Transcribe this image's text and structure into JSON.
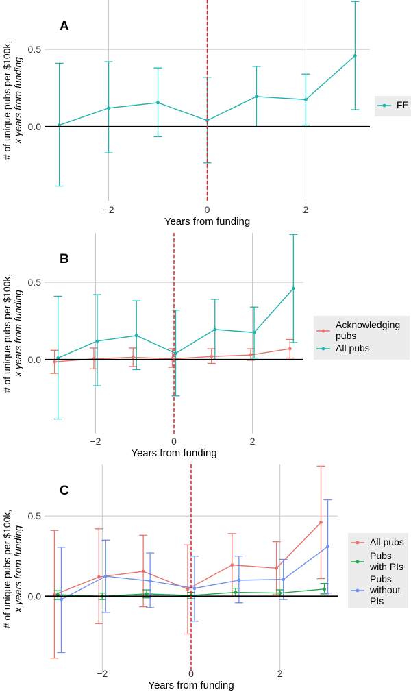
{
  "colors": {
    "teal": "#20b2aa",
    "salmon": "#e8736a",
    "green": "#22a64a",
    "blue": "#6f8ff0",
    "grid": "#c8c8c8",
    "zero_line": "#000000",
    "funding_line": "#e0202a",
    "legend_bg": "#ececec"
  },
  "chart_data": [
    {
      "type": "line",
      "panel_label": "A",
      "title": "",
      "xlabel": "Years from funding",
      "ylabel": "# of unique pubs per $100k,",
      "ylabel_italic": "x years from funding",
      "xlim": [
        -3.3,
        3.3
      ],
      "ylim": [
        -0.48,
        0.82
      ],
      "xticks": [
        -2,
        0,
        2
      ],
      "xtick_labels": [
        "−2",
        "0",
        "2"
      ],
      "yticks": [
        0.0,
        0.5
      ],
      "ytick_labels": [
        "0.0",
        "0.5"
      ],
      "vline_x": 0,
      "legend_position": "right",
      "series": [
        {
          "name": "FE",
          "color": "#20b2aa",
          "x": [
            -3,
            -2,
            -1,
            0,
            1,
            2,
            3
          ],
          "y": [
            0.01,
            0.12,
            0.155,
            0.04,
            0.195,
            0.175,
            0.46
          ],
          "lower": [
            -0.385,
            -0.17,
            -0.065,
            -0.235,
            0.0,
            0.01,
            0.11
          ],
          "upper": [
            0.41,
            0.42,
            0.38,
            0.32,
            0.39,
            0.34,
            0.81
          ]
        }
      ]
    },
    {
      "type": "line",
      "panel_label": "B",
      "title": "",
      "xlabel": "Years from funding",
      "ylabel": "# of unique pubs per $100k,",
      "ylabel_italic": "x years from funding",
      "xlim": [
        -3.3,
        3.3
      ],
      "ylim": [
        -0.48,
        0.82
      ],
      "xticks": [
        -2,
        0,
        2
      ],
      "xtick_labels": [
        "−2",
        "0",
        "2"
      ],
      "yticks": [
        0.0,
        0.5
      ],
      "ytick_labels": [
        "0.0",
        "0.5"
      ],
      "vline_x": 0,
      "legend_position": "right",
      "series": [
        {
          "name": "Acknowledging pubs",
          "legend_lines": [
            "Acknowledging",
            "pubs"
          ],
          "color": "#e8736a",
          "x": [
            -3,
            -2,
            -1,
            0,
            1,
            2,
            3
          ],
          "y": [
            -0.015,
            0.005,
            0.015,
            0.005,
            0.02,
            0.03,
            0.07
          ],
          "lower": [
            -0.09,
            -0.06,
            -0.045,
            -0.05,
            -0.025,
            -0.005,
            0.01
          ],
          "upper": [
            0.06,
            0.075,
            0.075,
            0.07,
            0.07,
            0.07,
            0.13
          ]
        },
        {
          "name": "All pubs",
          "legend_lines": [
            "All pubs"
          ],
          "color": "#20b2aa",
          "x": [
            -3,
            -2,
            -1,
            0,
            1,
            2,
            3
          ],
          "y": [
            0.01,
            0.12,
            0.155,
            0.04,
            0.195,
            0.175,
            0.46
          ],
          "lower": [
            -0.385,
            -0.17,
            -0.065,
            -0.235,
            0.0,
            0.01,
            0.11
          ],
          "upper": [
            0.41,
            0.42,
            0.38,
            0.32,
            0.39,
            0.34,
            0.81
          ]
        }
      ]
    },
    {
      "type": "line",
      "panel_label": "C",
      "title": "",
      "xlabel": "Years from funding",
      "ylabel": "# of unique pubs per $100k,",
      "ylabel_italic": "x years from funding",
      "xlim": [
        -3.3,
        3.3
      ],
      "ylim": [
        -0.48,
        0.82
      ],
      "xticks": [
        -2,
        0,
        2
      ],
      "xtick_labels": [
        "−2",
        "0",
        "2"
      ],
      "yticks": [
        0.0,
        0.5
      ],
      "ytick_labels": [
        "0.0",
        "0.5"
      ],
      "vline_x": 0,
      "legend_position": "right",
      "series": [
        {
          "name": "All pubs",
          "legend_lines": [
            "All pubs"
          ],
          "color": "#e8736a",
          "x": [
            -3,
            -2,
            -1,
            0,
            1,
            2,
            3
          ],
          "y": [
            0.01,
            0.12,
            0.155,
            0.045,
            0.195,
            0.175,
            0.46
          ],
          "lower": [
            -0.385,
            -0.17,
            -0.065,
            -0.235,
            0.0,
            0.01,
            0.11
          ],
          "upper": [
            0.41,
            0.42,
            0.38,
            0.32,
            0.39,
            0.34,
            0.81
          ]
        },
        {
          "name": "Pubs with PIs",
          "legend_lines": [
            "Pubs",
            "with PIs"
          ],
          "color": "#22a64a",
          "x": [
            -3,
            -2,
            -1,
            0,
            1,
            2,
            3
          ],
          "y": [
            0.01,
            0.0,
            0.015,
            0.005,
            0.025,
            0.02,
            0.045
          ],
          "lower": [
            -0.02,
            -0.02,
            -0.01,
            -0.015,
            0.0,
            0.0,
            0.015
          ],
          "upper": [
            0.035,
            0.02,
            0.04,
            0.025,
            0.05,
            0.04,
            0.08
          ]
        },
        {
          "name": "Pubs without PIs",
          "legend_lines": [
            "Pubs",
            "without",
            "PIs"
          ],
          "color": "#6f8ff0",
          "x": [
            -3,
            -2,
            -1,
            0,
            1,
            2,
            3
          ],
          "y": [
            -0.02,
            0.125,
            0.095,
            0.05,
            0.1,
            0.105,
            0.31
          ],
          "lower": [
            -0.35,
            -0.1,
            -0.07,
            -0.155,
            -0.04,
            -0.02,
            0.02
          ],
          "upper": [
            0.305,
            0.35,
            0.27,
            0.25,
            0.25,
            0.23,
            0.6
          ]
        }
      ]
    }
  ]
}
